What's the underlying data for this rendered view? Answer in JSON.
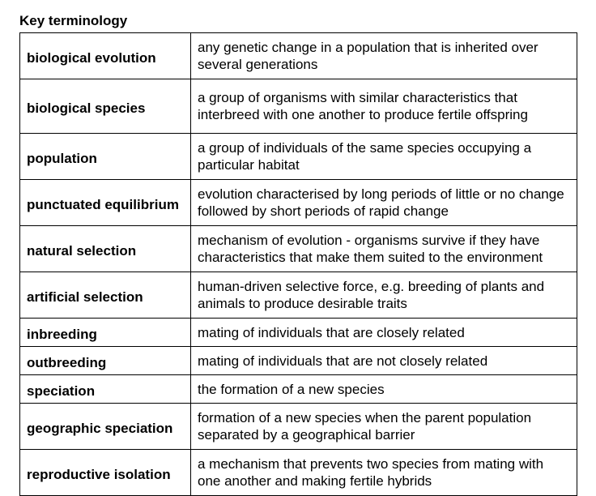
{
  "title": "Key terminology",
  "rows": [
    {
      "term": "biological evolution",
      "definition": "any genetic change in a population that is inherited over several generations"
    },
    {
      "term": "biological species",
      "definition": "a group of organisms with similar characteristics that interbreed with one another to produce fertile offspring"
    },
    {
      "term": "population",
      "definition": "a group of individuals of the same species occupying a particular habitat"
    },
    {
      "term": "punctuated equilibrium",
      "definition": "evolution characterised by long periods of little or no change followed by short periods of rapid change"
    },
    {
      "term": "natural selection",
      "definition": "mechanism of evolution - organisms survive if they have characteristics that make them suited to the environment"
    },
    {
      "term": "artificial selection",
      "definition": "human-driven selective force, e.g. breeding of plants and animals to produce desirable traits"
    },
    {
      "term": "inbreeding",
      "definition": "mating of individuals that are closely related"
    },
    {
      "term": "outbreeding",
      "definition": "mating of individuals that are not closely related"
    },
    {
      "term": "speciation",
      "definition": "the formation of a new species"
    },
    {
      "term": "geographic speciation",
      "definition": "formation of a new species when the parent population separated by a geographical barrier"
    },
    {
      "term": "reproductive isolation",
      "definition": "a mechanism that prevents two species from mating with one another and making fertile hybrids"
    }
  ]
}
